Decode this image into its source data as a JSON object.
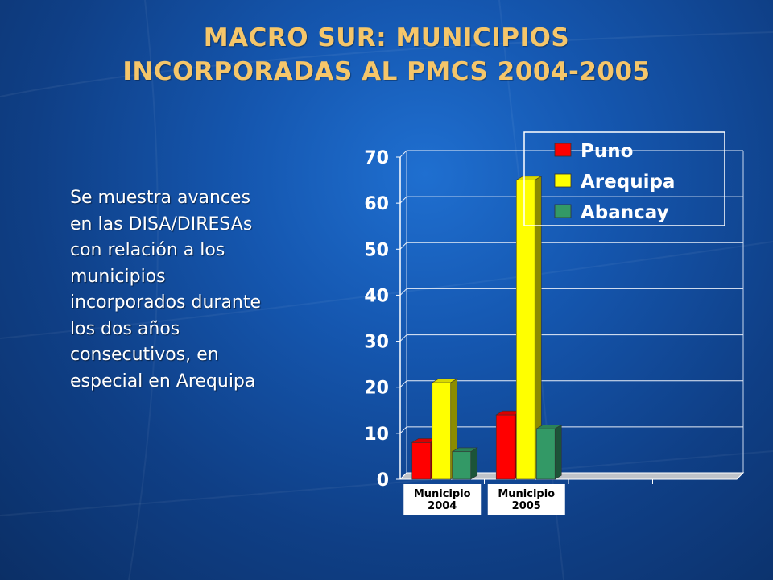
{
  "slide": {
    "title_line1": "MACRO SUR: MUNICIPIOS",
    "title_line2": "INCORPORADAS AL PMCS 2004-2005",
    "caption": "Se muestra avances en las DISA/DIRESAs con relación a los municipios incorporados durante los dos años consecutivos, en especial en Arequipa"
  },
  "colors": {
    "title": "#f5c66a",
    "puno": "#ff0000",
    "arequipa": "#ffff00",
    "abancay": "#339966"
  },
  "chart_data": {
    "type": "bar",
    "categories": [
      "Municipio 2004",
      "Municipio 2005"
    ],
    "category_lines": [
      [
        "Municipio",
        "2004"
      ],
      [
        "Municipio",
        "2005"
      ]
    ],
    "series": [
      {
        "name": "Puno",
        "values": [
          8,
          14
        ],
        "color": "#ff0000"
      },
      {
        "name": "Arequipa",
        "values": [
          21,
          65
        ],
        "color": "#ffff00"
      },
      {
        "name": "Abancay",
        "values": [
          6,
          11
        ],
        "color": "#339966"
      }
    ],
    "ylim": [
      0,
      70
    ],
    "yticks": [
      0,
      10,
      20,
      30,
      40,
      50,
      60,
      70
    ],
    "empty_category_slots": 2,
    "grid": true,
    "legend_position": "top-right",
    "style": "3d-columns"
  }
}
